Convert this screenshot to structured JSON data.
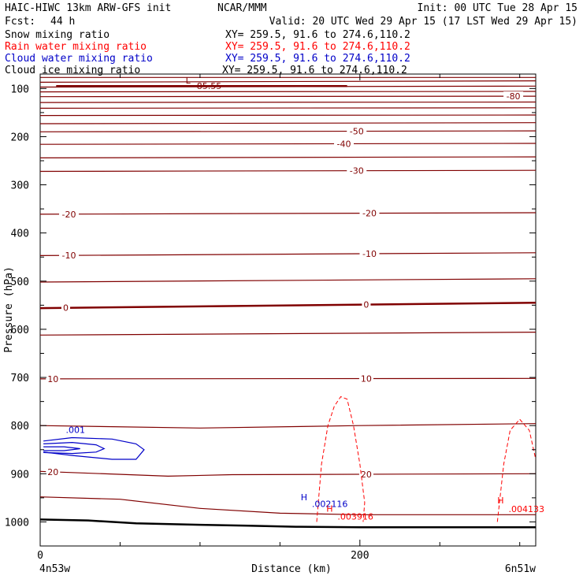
{
  "header": {
    "model": "HAIC-HIWC 13km ARW-GFS init",
    "org": "NCAR/MMM",
    "init": "Init: 00 UTC Tue 28 Apr 15",
    "fcst_label": "Fcst:",
    "fcst_value": "44 h",
    "valid": "Valid: 20 UTC Wed 29 Apr 15 (17 LST Wed 29 Apr 15)"
  },
  "legend": [
    {
      "name": "Snow mixing ratio",
      "xy": "XY= 259.5, 91.6 to 274.6,110.2",
      "color": "#000000"
    },
    {
      "name": "Rain water mixing ratio",
      "xy": "XY= 259.5, 91.6 to 274.6,110.2",
      "color": "#ff0000"
    },
    {
      "name": "Cloud water mixing ratio",
      "xy": "XY= 259.5, 91.6 to 274.6,110.2",
      "color": "#0000c8"
    },
    {
      "name": "Cloud ice mixing ratio",
      "xy": "XY= 259.5, 91.6 to 274.6,110.2",
      "color": "#000000"
    }
  ],
  "chart_data": {
    "type": "line",
    "xlabel": "Distance (km)",
    "ylabel": "Pressure (hPa)",
    "xlim": [
      0,
      310
    ],
    "ylim": [
      1050,
      70
    ],
    "x_ticks": [
      0,
      200
    ],
    "x_minor_step": 50,
    "y_ticks": [
      100,
      200,
      300,
      400,
      500,
      600,
      700,
      800,
      900,
      1000
    ],
    "y_minor_step": 50,
    "x_end_labels": {
      "left": "4n53w",
      "right": "6n51w"
    },
    "colors": {
      "temperature": "#800000",
      "terrain": "#000000",
      "rain": "#ff0000",
      "cloud_water": "#0000c8"
    },
    "temperature_lines": [
      {
        "x": [
          0,
          310
        ],
        "p": [
          77,
          77
        ]
      },
      {
        "x": [
          0,
          310
        ],
        "p": [
          87,
          84
        ]
      },
      {
        "x": [
          0,
          310
        ],
        "p": [
          97,
          95
        ]
      },
      {
        "x": [
          0,
          310
        ],
        "p": [
          107,
          106
        ]
      },
      {
        "x": [
          0,
          310
        ],
        "p": [
          117,
          116
        ],
        "label": "-80",
        "label_x": [
          296
        ]
      },
      {
        "x": [
          0,
          310
        ],
        "p": [
          129,
          128
        ]
      },
      {
        "x": [
          0,
          310
        ],
        "p": [
          141,
          140
        ]
      },
      {
        "x": [
          0,
          310
        ],
        "p": [
          156,
          155
        ]
      },
      {
        "x": [
          0,
          310
        ],
        "p": [
          173,
          171
        ]
      },
      {
        "x": [
          0,
          310
        ],
        "p": [
          190,
          188
        ],
        "label": "-50",
        "label_x": [
          198
        ]
      },
      {
        "x": [
          0,
          310
        ],
        "p": [
          216,
          214
        ],
        "label": "-40",
        "label_x": [
          190
        ]
      },
      {
        "x": [
          0,
          310
        ],
        "p": [
          244,
          242
        ]
      },
      {
        "x": [
          0,
          310
        ],
        "p": [
          272,
          270
        ],
        "label": "-30",
        "label_x": [
          198
        ]
      },
      {
        "x": [
          0,
          310
        ],
        "p": [
          361,
          358
        ],
        "label": "-20",
        "label_x": [
          18,
          206
        ]
      },
      {
        "x": [
          0,
          310
        ],
        "p": [
          447,
          441
        ],
        "label": "-10",
        "label_x": [
          18,
          206
        ]
      },
      {
        "x": [
          0,
          310
        ],
        "p": [
          502,
          495
        ]
      },
      {
        "x": [
          0,
          310
        ],
        "p": [
          556,
          545
        ],
        "label": "0",
        "label_x": [
          16,
          204
        ],
        "bold": true
      },
      {
        "x": [
          0,
          310
        ],
        "p": [
          612,
          606
        ]
      },
      {
        "x": [
          0,
          310
        ],
        "p": [
          703,
          702
        ],
        "label": "10",
        "label_x": [
          8,
          204
        ]
      },
      {
        "x": [
          0,
          100,
          200,
          310
        ],
        "p": [
          800,
          805,
          800,
          796
        ]
      },
      {
        "x": [
          0,
          80,
          120,
          310
        ],
        "p": [
          895,
          905,
          902,
          900
        ],
        "label": "20",
        "label_x": [
          8,
          204
        ]
      },
      {
        "x": [
          0,
          50,
          100,
          150,
          200,
          310
        ],
        "p": [
          948,
          953,
          972,
          982,
          985,
          985
        ]
      }
    ],
    "terrain_line": {
      "x": [
        0,
        30,
        60,
        100,
        130,
        160,
        200,
        250,
        310
      ],
      "p": [
        995,
        997,
        1003,
        1006,
        1008,
        1010,
        1011,
        1011,
        1011
      ]
    },
    "upper_level": {
      "x": [
        10,
        192
      ],
      "p": [
        95,
        95
      ]
    },
    "rain_contours": [
      {
        "x": [
          173,
          176,
          180,
          184,
          188,
          192,
          196,
          200,
          203,
          202
        ],
        "p": [
          1000,
          880,
          800,
          760,
          740,
          745,
          800,
          880,
          960,
          1000
        ]
      },
      {
        "x": [
          286,
          290,
          294,
          300,
          306,
          310
        ],
        "p": [
          1000,
          880,
          810,
          787,
          810,
          870
        ]
      }
    ],
    "cloud_water_contours": [
      {
        "x": [
          2,
          20,
          45,
          60,
          65,
          60,
          45,
          20,
          2
        ],
        "p": [
          832,
          825,
          828,
          838,
          850,
          870,
          870,
          862,
          855
        ]
      },
      {
        "x": [
          2,
          20,
          35,
          40,
          35,
          20,
          2
        ],
        "p": [
          838,
          835,
          840,
          848,
          855,
          858,
          856
        ]
      },
      {
        "x": [
          2,
          15,
          25,
          15,
          2
        ],
        "p": [
          844,
          844,
          848,
          852,
          852
        ]
      }
    ],
    "annotations": [
      {
        "text": "L",
        "x": 91,
        "p": 90,
        "color": "#800000"
      },
      {
        "text": "-85.55",
        "x": 96,
        "p": 101,
        "color": "#800000"
      },
      {
        "text": "H",
        "x": 163,
        "p": 955,
        "color": "#0000c8"
      },
      {
        "text": ".002116",
        "x": 170,
        "p": 969,
        "color": "#0000c8"
      },
      {
        "text": "H",
        "x": 179,
        "p": 979,
        "color": "#ff0000"
      },
      {
        "text": ".003916",
        "x": 186,
        "p": 995,
        "color": "#ff0000"
      },
      {
        "text": "H",
        "x": 286,
        "p": 962,
        "color": "#ff0000"
      },
      {
        "text": ".004133",
        "x": 293,
        "p": 980,
        "color": "#ff0000"
      },
      {
        "text": ".001",
        "x": 16,
        "p": 815,
        "color": "#0000c8"
      }
    ]
  }
}
